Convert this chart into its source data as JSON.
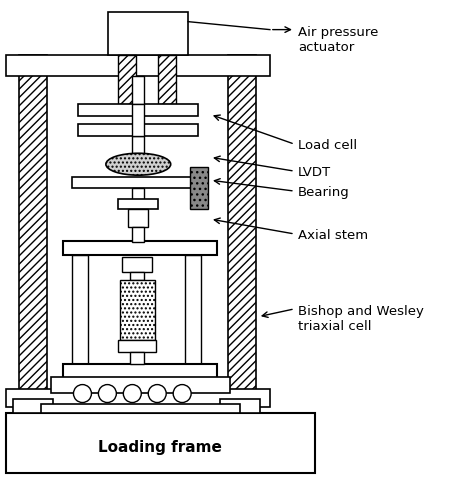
{
  "bg_color": "#ffffff",
  "line_color": "#000000",
  "labels": {
    "air_pressure": "Air pressure\nactuator",
    "load_cell": "Load cell",
    "lvdt": "LVDT",
    "bearing": "Bearing",
    "axial_stem": "Axial stem",
    "bishop_wesley": "Bishop and Wesley\ntriaxial cell",
    "loading_frame": "Loading frame"
  },
  "figsize": [
    4.74,
    4.81
  ],
  "dpi": 100
}
